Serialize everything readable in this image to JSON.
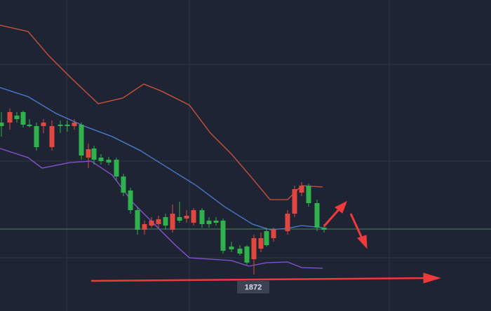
{
  "time_label": "1872"
}
